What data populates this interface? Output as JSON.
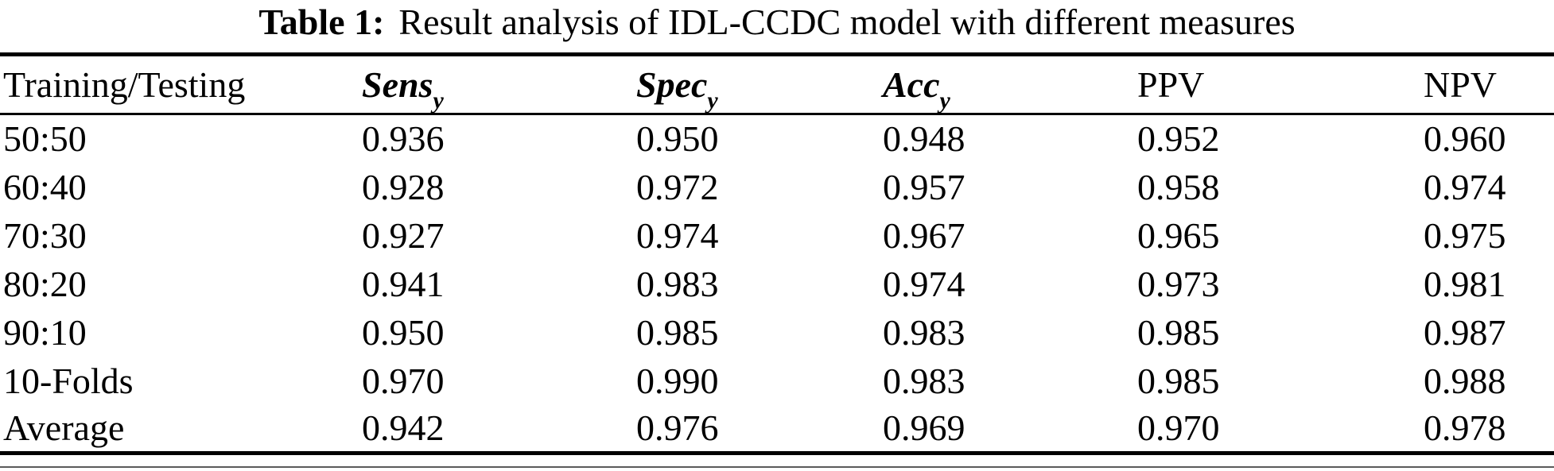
{
  "title": {
    "label": "Table 1:",
    "text": "Result analysis of IDL-CCDC model with different measures"
  },
  "table": {
    "headers": [
      {
        "label": "Training/Testing",
        "sub": ""
      },
      {
        "label": "Sens",
        "sub": "y"
      },
      {
        "label": "Spec",
        "sub": "y"
      },
      {
        "label": "Acc",
        "sub": "y"
      },
      {
        "label": "PPV",
        "sub": ""
      },
      {
        "label": "NPV",
        "sub": ""
      }
    ],
    "rows": [
      [
        "50:50",
        "0.936",
        "0.950",
        "0.948",
        "0.952",
        "0.960"
      ],
      [
        "60:40",
        "0.928",
        "0.972",
        "0.957",
        "0.958",
        "0.974"
      ],
      [
        "70:30",
        "0.927",
        "0.974",
        "0.967",
        "0.965",
        "0.975"
      ],
      [
        "80:20",
        "0.941",
        "0.983",
        "0.974",
        "0.973",
        "0.981"
      ],
      [
        "90:10",
        "0.950",
        "0.985",
        "0.983",
        "0.985",
        "0.987"
      ],
      [
        "10-Folds",
        "0.970",
        "0.990",
        "0.983",
        "0.985",
        "0.988"
      ],
      [
        "Average",
        "0.942",
        "0.976",
        "0.969",
        "0.970",
        "0.978"
      ]
    ]
  },
  "colors": {
    "text": "#000000",
    "background": "#ffffff",
    "rule": "#000000"
  }
}
